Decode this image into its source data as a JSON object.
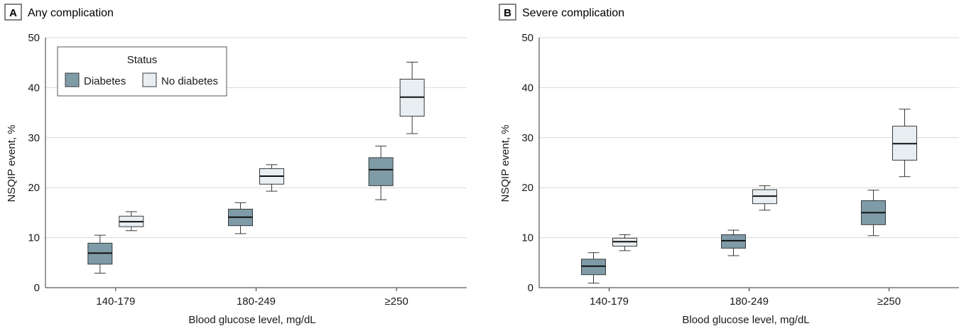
{
  "colors": {
    "diabetes": "#7f9ba8",
    "no_diabetes": "#e8eef1"
  },
  "chart_data": [
    {
      "type": "box",
      "panel_letter": "A",
      "title": "Any complication",
      "xlabel": "Blood glucose level, mg/dL",
      "ylabel": "NSQIP event, %",
      "ylim": [
        0,
        50
      ],
      "yticks": [
        0,
        10,
        20,
        30,
        40,
        50
      ],
      "grid": true,
      "categories": [
        "140-179",
        "180-249",
        "≥250"
      ],
      "legend": {
        "title": "Status",
        "placement": "top-left"
      },
      "series": [
        {
          "name": "Diabetes",
          "color_key": "diabetes",
          "values": [
            {
              "min": 2.9,
              "q1": 4.7,
              "median": 6.9,
              "q3": 8.9,
              "max": 10.5
            },
            {
              "min": 10.8,
              "q1": 12.4,
              "median": 14.1,
              "q3": 15.7,
              "max": 17.0
            },
            {
              "min": 17.6,
              "q1": 20.4,
              "median": 23.6,
              "q3": 26.0,
              "max": 28.3
            }
          ]
        },
        {
          "name": "No diabetes",
          "color_key": "no_diabetes",
          "values": [
            {
              "min": 11.4,
              "q1": 12.2,
              "median": 13.2,
              "q3": 14.3,
              "max": 15.2
            },
            {
              "min": 19.3,
              "q1": 20.7,
              "median": 22.3,
              "q3": 23.8,
              "max": 24.6
            },
            {
              "min": 30.8,
              "q1": 34.3,
              "median": 38.1,
              "q3": 41.7,
              "max": 45.1
            }
          ]
        }
      ]
    },
    {
      "type": "box",
      "panel_letter": "B",
      "title": "Severe complication",
      "xlabel": "Blood glucose level, mg/dL",
      "ylabel": "NSQIP event, %",
      "ylim": [
        0,
        50
      ],
      "yticks": [
        0,
        10,
        20,
        30,
        40,
        50
      ],
      "grid": true,
      "categories": [
        "140-179",
        "180-249",
        "≥250"
      ],
      "series": [
        {
          "name": "Diabetes",
          "color_key": "diabetes",
          "values": [
            {
              "min": 0.9,
              "q1": 2.6,
              "median": 4.3,
              "q3": 5.7,
              "max": 7.0
            },
            {
              "min": 6.4,
              "q1": 7.9,
              "median": 9.4,
              "q3": 10.6,
              "max": 11.5
            },
            {
              "min": 10.4,
              "q1": 12.6,
              "median": 15.0,
              "q3": 17.4,
              "max": 19.5
            }
          ]
        },
        {
          "name": "No diabetes",
          "color_key": "no_diabetes",
          "values": [
            {
              "min": 7.4,
              "q1": 8.3,
              "median": 9.2,
              "q3": 9.9,
              "max": 10.6
            },
            {
              "min": 15.5,
              "q1": 16.8,
              "median": 18.3,
              "q3": 19.6,
              "max": 20.4
            },
            {
              "min": 22.2,
              "q1": 25.5,
              "median": 28.8,
              "q3": 32.3,
              "max": 35.7
            }
          ]
        }
      ]
    }
  ]
}
